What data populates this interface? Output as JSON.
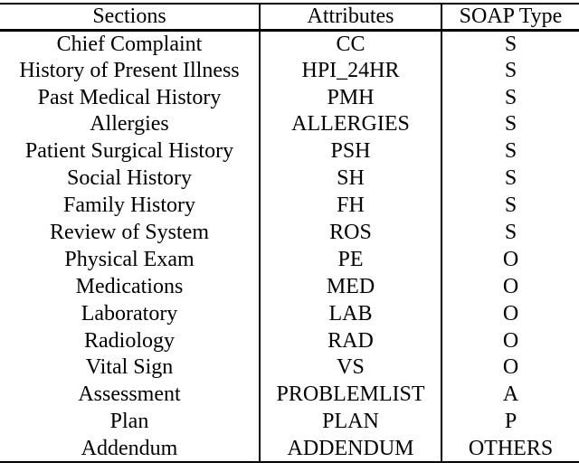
{
  "table": {
    "headers": [
      "Sections",
      "Attributes",
      "SOAP Type"
    ],
    "rows": [
      {
        "section": "Chief Complaint",
        "attribute": "CC",
        "soap_type": "S"
      },
      {
        "section": "History of Present Illness",
        "attribute": "HPI_24HR",
        "soap_type": "S"
      },
      {
        "section": "Past Medical History",
        "attribute": "PMH",
        "soap_type": "S"
      },
      {
        "section": "Allergies",
        "attribute": "ALLERGIES",
        "soap_type": "S"
      },
      {
        "section": "Patient Surgical History",
        "attribute": "PSH",
        "soap_type": "S"
      },
      {
        "section": "Social History",
        "attribute": "SH",
        "soap_type": "S"
      },
      {
        "section": "Family History",
        "attribute": "FH",
        "soap_type": "S"
      },
      {
        "section": "Review of System",
        "attribute": "ROS",
        "soap_type": "S"
      },
      {
        "section": "Physical Exam",
        "attribute": "PE",
        "soap_type": "O"
      },
      {
        "section": "Medications",
        "attribute": "MED",
        "soap_type": "O"
      },
      {
        "section": "Laboratory",
        "attribute": "LAB",
        "soap_type": "O"
      },
      {
        "section": "Radiology",
        "attribute": "RAD",
        "soap_type": "O"
      },
      {
        "section": "Vital Sign",
        "attribute": "VS",
        "soap_type": "O"
      },
      {
        "section": "Assessment",
        "attribute": "PROBLEMLIST",
        "soap_type": "A"
      },
      {
        "section": "Plan",
        "attribute": "PLAN",
        "soap_type": "P"
      },
      {
        "section": "Addendum",
        "attribute": "ADDENDUM",
        "soap_type": "OTHERS"
      }
    ]
  },
  "chart_data": {
    "type": "table",
    "columns": [
      "Sections",
      "Attributes",
      "SOAP Type"
    ],
    "rows": [
      [
        "Chief Complaint",
        "CC",
        "S"
      ],
      [
        "History of Present Illness",
        "HPI_24HR",
        "S"
      ],
      [
        "Past Medical History",
        "PMH",
        "S"
      ],
      [
        "Allergies",
        "ALLERGIES",
        "S"
      ],
      [
        "Patient Surgical History",
        "PSH",
        "S"
      ],
      [
        "Social History",
        "SH",
        "S"
      ],
      [
        "Family History",
        "FH",
        "S"
      ],
      [
        "Review of System",
        "ROS",
        "S"
      ],
      [
        "Physical Exam",
        "PE",
        "O"
      ],
      [
        "Medications",
        "MED",
        "O"
      ],
      [
        "Laboratory",
        "LAB",
        "O"
      ],
      [
        "Radiology",
        "RAD",
        "O"
      ],
      [
        "Vital Sign",
        "VS",
        "O"
      ],
      [
        "Assessment",
        "PROBLEMLIST",
        "A"
      ],
      [
        "Plan",
        "PLAN",
        "P"
      ],
      [
        "Addendum",
        "ADDENDUM",
        "OTHERS"
      ]
    ]
  },
  "colors": {
    "text": "#000000",
    "rule": "#000000",
    "background": "#ffffff"
  }
}
